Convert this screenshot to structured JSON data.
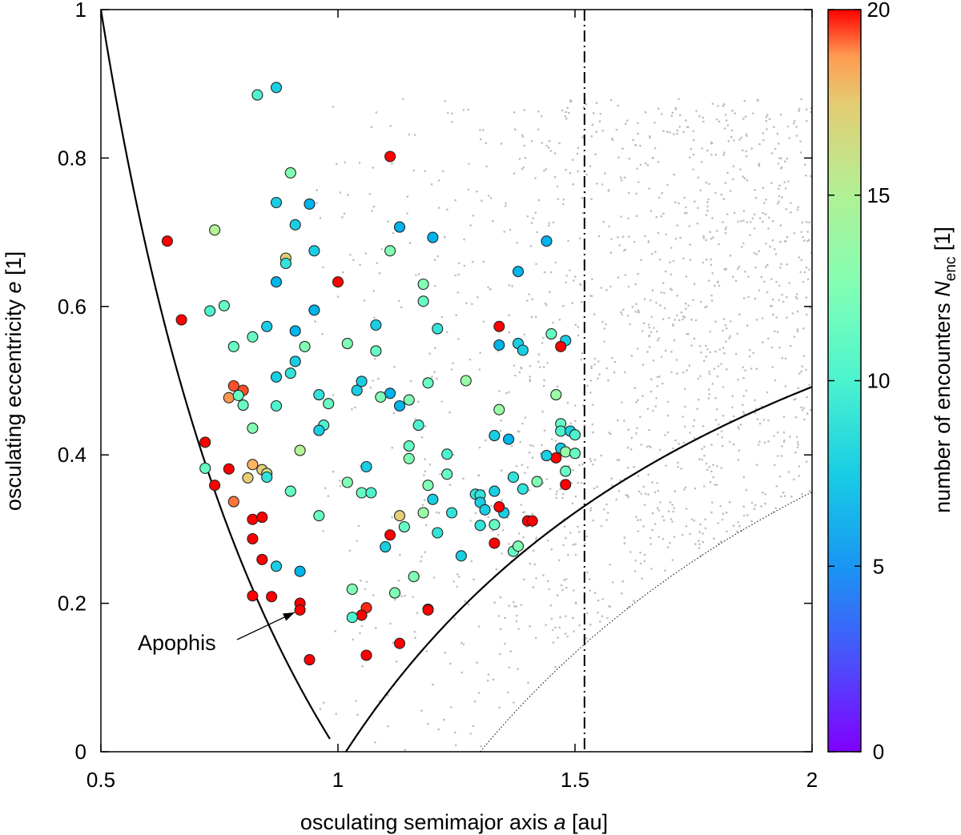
{
  "chart_data": {
    "type": "scatter",
    "xlabel_prefix": "osculating semimajor axis ",
    "xlabel_var": "a",
    "xlabel_unit": " [au]",
    "ylabel_prefix": "osculating eccentricity ",
    "ylabel_var": "e",
    "ylabel_unit": " [1]",
    "colorbar_label_prefix": "number of encounters ",
    "colorbar_var": "N",
    "colorbar_sub": "enc",
    "colorbar_unit": " [1]",
    "xlim": [
      0.5,
      2.0
    ],
    "ylim": [
      0.0,
      1.0
    ],
    "clim": [
      0,
      20
    ],
    "x_ticks": [
      0.5,
      1.0,
      1.5,
      2.0
    ],
    "x_tick_labels": [
      "0.5",
      "1",
      "1.5",
      "2"
    ],
    "y_ticks": [
      0,
      0.2,
      0.4,
      0.6,
      0.8,
      1.0
    ],
    "y_tick_labels": [
      "0",
      "0.2",
      "0.4",
      "0.6",
      "0.8",
      "1"
    ],
    "c_ticks": [
      0,
      5,
      10,
      15,
      20
    ],
    "c_tick_labels": [
      "0",
      "5",
      "10",
      "15",
      "20"
    ],
    "vertical_line_a": 1.52,
    "annotation": {
      "text": "Apophis",
      "a": 0.922,
      "e": 0.191
    },
    "curves": [
      {
        "name": "aphelion-1au",
        "style": "solid"
      },
      {
        "name": "perihelion-1au",
        "style": "solid"
      },
      {
        "name": "perihelion-1.3au",
        "style": "dotted"
      }
    ],
    "background_dots_count": 1400,
    "points": [
      [
        0.87,
        0.895,
        6
      ],
      [
        0.83,
        0.885,
        8
      ],
      [
        1.11,
        0.802,
        20
      ],
      [
        0.9,
        0.78,
        10
      ],
      [
        0.87,
        0.74,
        6
      ],
      [
        0.94,
        0.738,
        5
      ],
      [
        0.91,
        0.71,
        6
      ],
      [
        0.74,
        0.703,
        12
      ],
      [
        1.13,
        0.707,
        5
      ],
      [
        1.2,
        0.693,
        5
      ],
      [
        1.44,
        0.688,
        5
      ],
      [
        0.64,
        0.688,
        20
      ],
      [
        1.11,
        0.675,
        10
      ],
      [
        0.95,
        0.675,
        6
      ],
      [
        0.89,
        0.665,
        14
      ],
      [
        0.89,
        0.658,
        7
      ],
      [
        0.87,
        0.633,
        5
      ],
      [
        1.0,
        0.633,
        20
      ],
      [
        1.18,
        0.63,
        10
      ],
      [
        1.38,
        0.647,
        5
      ],
      [
        0.73,
        0.594,
        8
      ],
      [
        0.76,
        0.601,
        9
      ],
      [
        0.67,
        0.582,
        20
      ],
      [
        0.95,
        0.595,
        5
      ],
      [
        1.18,
        0.607,
        9
      ],
      [
        0.85,
        0.573,
        6
      ],
      [
        0.91,
        0.567,
        5
      ],
      [
        1.08,
        0.575,
        6
      ],
      [
        0.82,
        0.559,
        9
      ],
      [
        0.78,
        0.546,
        9
      ],
      [
        0.93,
        0.546,
        10
      ],
      [
        1.02,
        0.55,
        10
      ],
      [
        1.21,
        0.57,
        7
      ],
      [
        1.34,
        0.573,
        20
      ],
      [
        1.34,
        0.548,
        5
      ],
      [
        1.38,
        0.55,
        6
      ],
      [
        1.39,
        0.541,
        6
      ],
      [
        1.45,
        0.563,
        9
      ],
      [
        1.48,
        0.554,
        6
      ],
      [
        1.47,
        0.546,
        20
      ],
      [
        0.87,
        0.505,
        6
      ],
      [
        0.9,
        0.51,
        7
      ],
      [
        0.91,
        0.526,
        6
      ],
      [
        1.04,
        0.487,
        6
      ],
      [
        1.05,
        0.499,
        6
      ],
      [
        1.09,
        0.478,
        10
      ],
      [
        1.08,
        0.54,
        9
      ],
      [
        1.11,
        0.483,
        5
      ],
      [
        1.13,
        0.466,
        5
      ],
      [
        1.15,
        0.474,
        10
      ],
      [
        1.19,
        0.497,
        9
      ],
      [
        1.27,
        0.5,
        11
      ],
      [
        0.78,
        0.493,
        18
      ],
      [
        0.77,
        0.477,
        16
      ],
      [
        0.8,
        0.487,
        18
      ],
      [
        0.8,
        0.467,
        9
      ],
      [
        0.79,
        0.48,
        9
      ],
      [
        0.87,
        0.466,
        8
      ],
      [
        0.96,
        0.481,
        7
      ],
      [
        0.98,
        0.469,
        9
      ],
      [
        0.97,
        0.44,
        8
      ],
      [
        0.96,
        0.433,
        6
      ],
      [
        0.82,
        0.436,
        10
      ],
      [
        1.17,
        0.44,
        8
      ],
      [
        1.34,
        0.461,
        11
      ],
      [
        1.33,
        0.426,
        6
      ],
      [
        1.36,
        0.421,
        5
      ],
      [
        1.46,
        0.481,
        11
      ],
      [
        1.47,
        0.442,
        9
      ],
      [
        1.47,
        0.432,
        8
      ],
      [
        1.49,
        0.432,
        6
      ],
      [
        1.5,
        0.427,
        8
      ],
      [
        1.47,
        0.409,
        6
      ],
      [
        1.48,
        0.404,
        11
      ],
      [
        1.5,
        0.402,
        9
      ],
      [
        1.48,
        0.378,
        9
      ],
      [
        1.46,
        0.396,
        20
      ],
      [
        1.44,
        0.399,
        6
      ],
      [
        1.48,
        0.36,
        20
      ],
      [
        0.72,
        0.417,
        20
      ],
      [
        0.72,
        0.382,
        9
      ],
      [
        0.74,
        0.359,
        20
      ],
      [
        0.77,
        0.381,
        20
      ],
      [
        0.82,
        0.387,
        15
      ],
      [
        0.84,
        0.38,
        14
      ],
      [
        0.85,
        0.375,
        13
      ],
      [
        0.85,
        0.37,
        7
      ],
      [
        0.81,
        0.369,
        14
      ],
      [
        0.92,
        0.406,
        12
      ],
      [
        1.06,
        0.384,
        6
      ],
      [
        1.02,
        0.363,
        10
      ],
      [
        1.05,
        0.349,
        9
      ],
      [
        1.07,
        0.349,
        8
      ],
      [
        1.15,
        0.412,
        9
      ],
      [
        1.15,
        0.395,
        10
      ],
      [
        1.19,
        0.359,
        10
      ],
      [
        1.2,
        0.34,
        6
      ],
      [
        1.23,
        0.401,
        8
      ],
      [
        1.24,
        0.322,
        7
      ],
      [
        1.21,
        0.295,
        7
      ],
      [
        1.23,
        0.374,
        9
      ],
      [
        1.29,
        0.347,
        7
      ],
      [
        1.3,
        0.346,
        7
      ],
      [
        1.3,
        0.336,
        6
      ],
      [
        1.31,
        0.326,
        6
      ],
      [
        1.33,
        0.351,
        6
      ],
      [
        1.35,
        0.322,
        6
      ],
      [
        1.37,
        0.37,
        7
      ],
      [
        1.39,
        0.354,
        7
      ],
      [
        1.42,
        0.364,
        10
      ],
      [
        1.4,
        0.311,
        20
      ],
      [
        1.41,
        0.311,
        20
      ],
      [
        1.34,
        0.33,
        20
      ],
      [
        1.3,
        0.305,
        7
      ],
      [
        1.33,
        0.306,
        9
      ],
      [
        1.33,
        0.281,
        20
      ],
      [
        1.37,
        0.27,
        9
      ],
      [
        1.38,
        0.277,
        10
      ],
      [
        1.26,
        0.264,
        6
      ],
      [
        1.13,
        0.318,
        14
      ],
      [
        1.14,
        0.303,
        9
      ],
      [
        1.11,
        0.292,
        20
      ],
      [
        1.1,
        0.276,
        6
      ],
      [
        1.16,
        0.236,
        10
      ],
      [
        1.18,
        0.322,
        11
      ],
      [
        0.78,
        0.337,
        17
      ],
      [
        0.82,
        0.313,
        20
      ],
      [
        0.84,
        0.316,
        20
      ],
      [
        0.82,
        0.287,
        20
      ],
      [
        0.84,
        0.259,
        20
      ],
      [
        0.9,
        0.351,
        9
      ],
      [
        0.96,
        0.318,
        9
      ],
      [
        0.87,
        0.25,
        6
      ],
      [
        0.92,
        0.243,
        5
      ],
      [
        0.82,
        0.21,
        20
      ],
      [
        0.86,
        0.209,
        20
      ],
      [
        0.92,
        0.2,
        20
      ],
      [
        0.92,
        0.191,
        20
      ],
      [
        1.03,
        0.219,
        10
      ],
      [
        1.06,
        0.194,
        19
      ],
      [
        1.05,
        0.184,
        20
      ],
      [
        1.03,
        0.181,
        8
      ],
      [
        1.12,
        0.214,
        10
      ],
      [
        1.19,
        0.192,
        17
      ],
      [
        1.19,
        0.191,
        20
      ],
      [
        1.06,
        0.13,
        20
      ],
      [
        1.13,
        0.146,
        20
      ],
      [
        0.94,
        0.124,
        20
      ]
    ]
  }
}
